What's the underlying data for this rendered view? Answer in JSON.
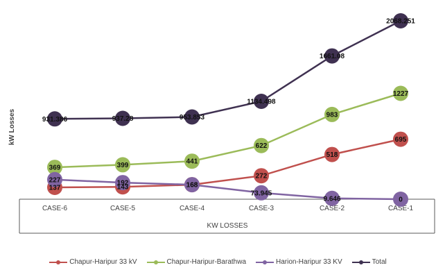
{
  "chart_data": {
    "type": "line",
    "title": "",
    "xlabel": "KW LOSSES",
    "ylabel": "kW Losses",
    "categories": [
      "CASE-6",
      "CASE-5",
      "CASE-4",
      "CASE-3",
      "CASE-2",
      "CASE-1"
    ],
    "series": [
      {
        "name": "Chapur-Haripur 33 kV",
        "color": "#c0504d",
        "values": [
          137,
          143,
          168,
          272,
          518,
          695
        ],
        "labels": [
          "137",
          "143",
          "168",
          "272",
          "518",
          "695"
        ]
      },
      {
        "name": "Chapur-Haripur-Barathwa",
        "color": "#9bbb59",
        "values": [
          369,
          399,
          441,
          622,
          983,
          1227
        ],
        "labels": [
          "369",
          "399",
          "441",
          "622",
          "983",
          "1227"
        ]
      },
      {
        "name": "Harion-Haripur 33 KV",
        "color": "#8064a2",
        "values": [
          227,
          192,
          168,
          73.945,
          9.646,
          0
        ],
        "labels": [
          "227",
          "192",
          "168",
          "73.945",
          "9.646",
          "0"
        ]
      },
      {
        "name": "Total",
        "color": "#3f3151",
        "values": [
          931.386,
          937.28,
          953.853,
          1134.498,
          1661.08,
          2068.251
        ],
        "labels": [
          "931.386",
          "937.28",
          "953.853",
          "1134.498",
          "1661.08",
          "2068.251"
        ]
      }
    ],
    "ylim": [
      0,
      2200
    ],
    "grid": false,
    "legend_position": "bottom"
  }
}
